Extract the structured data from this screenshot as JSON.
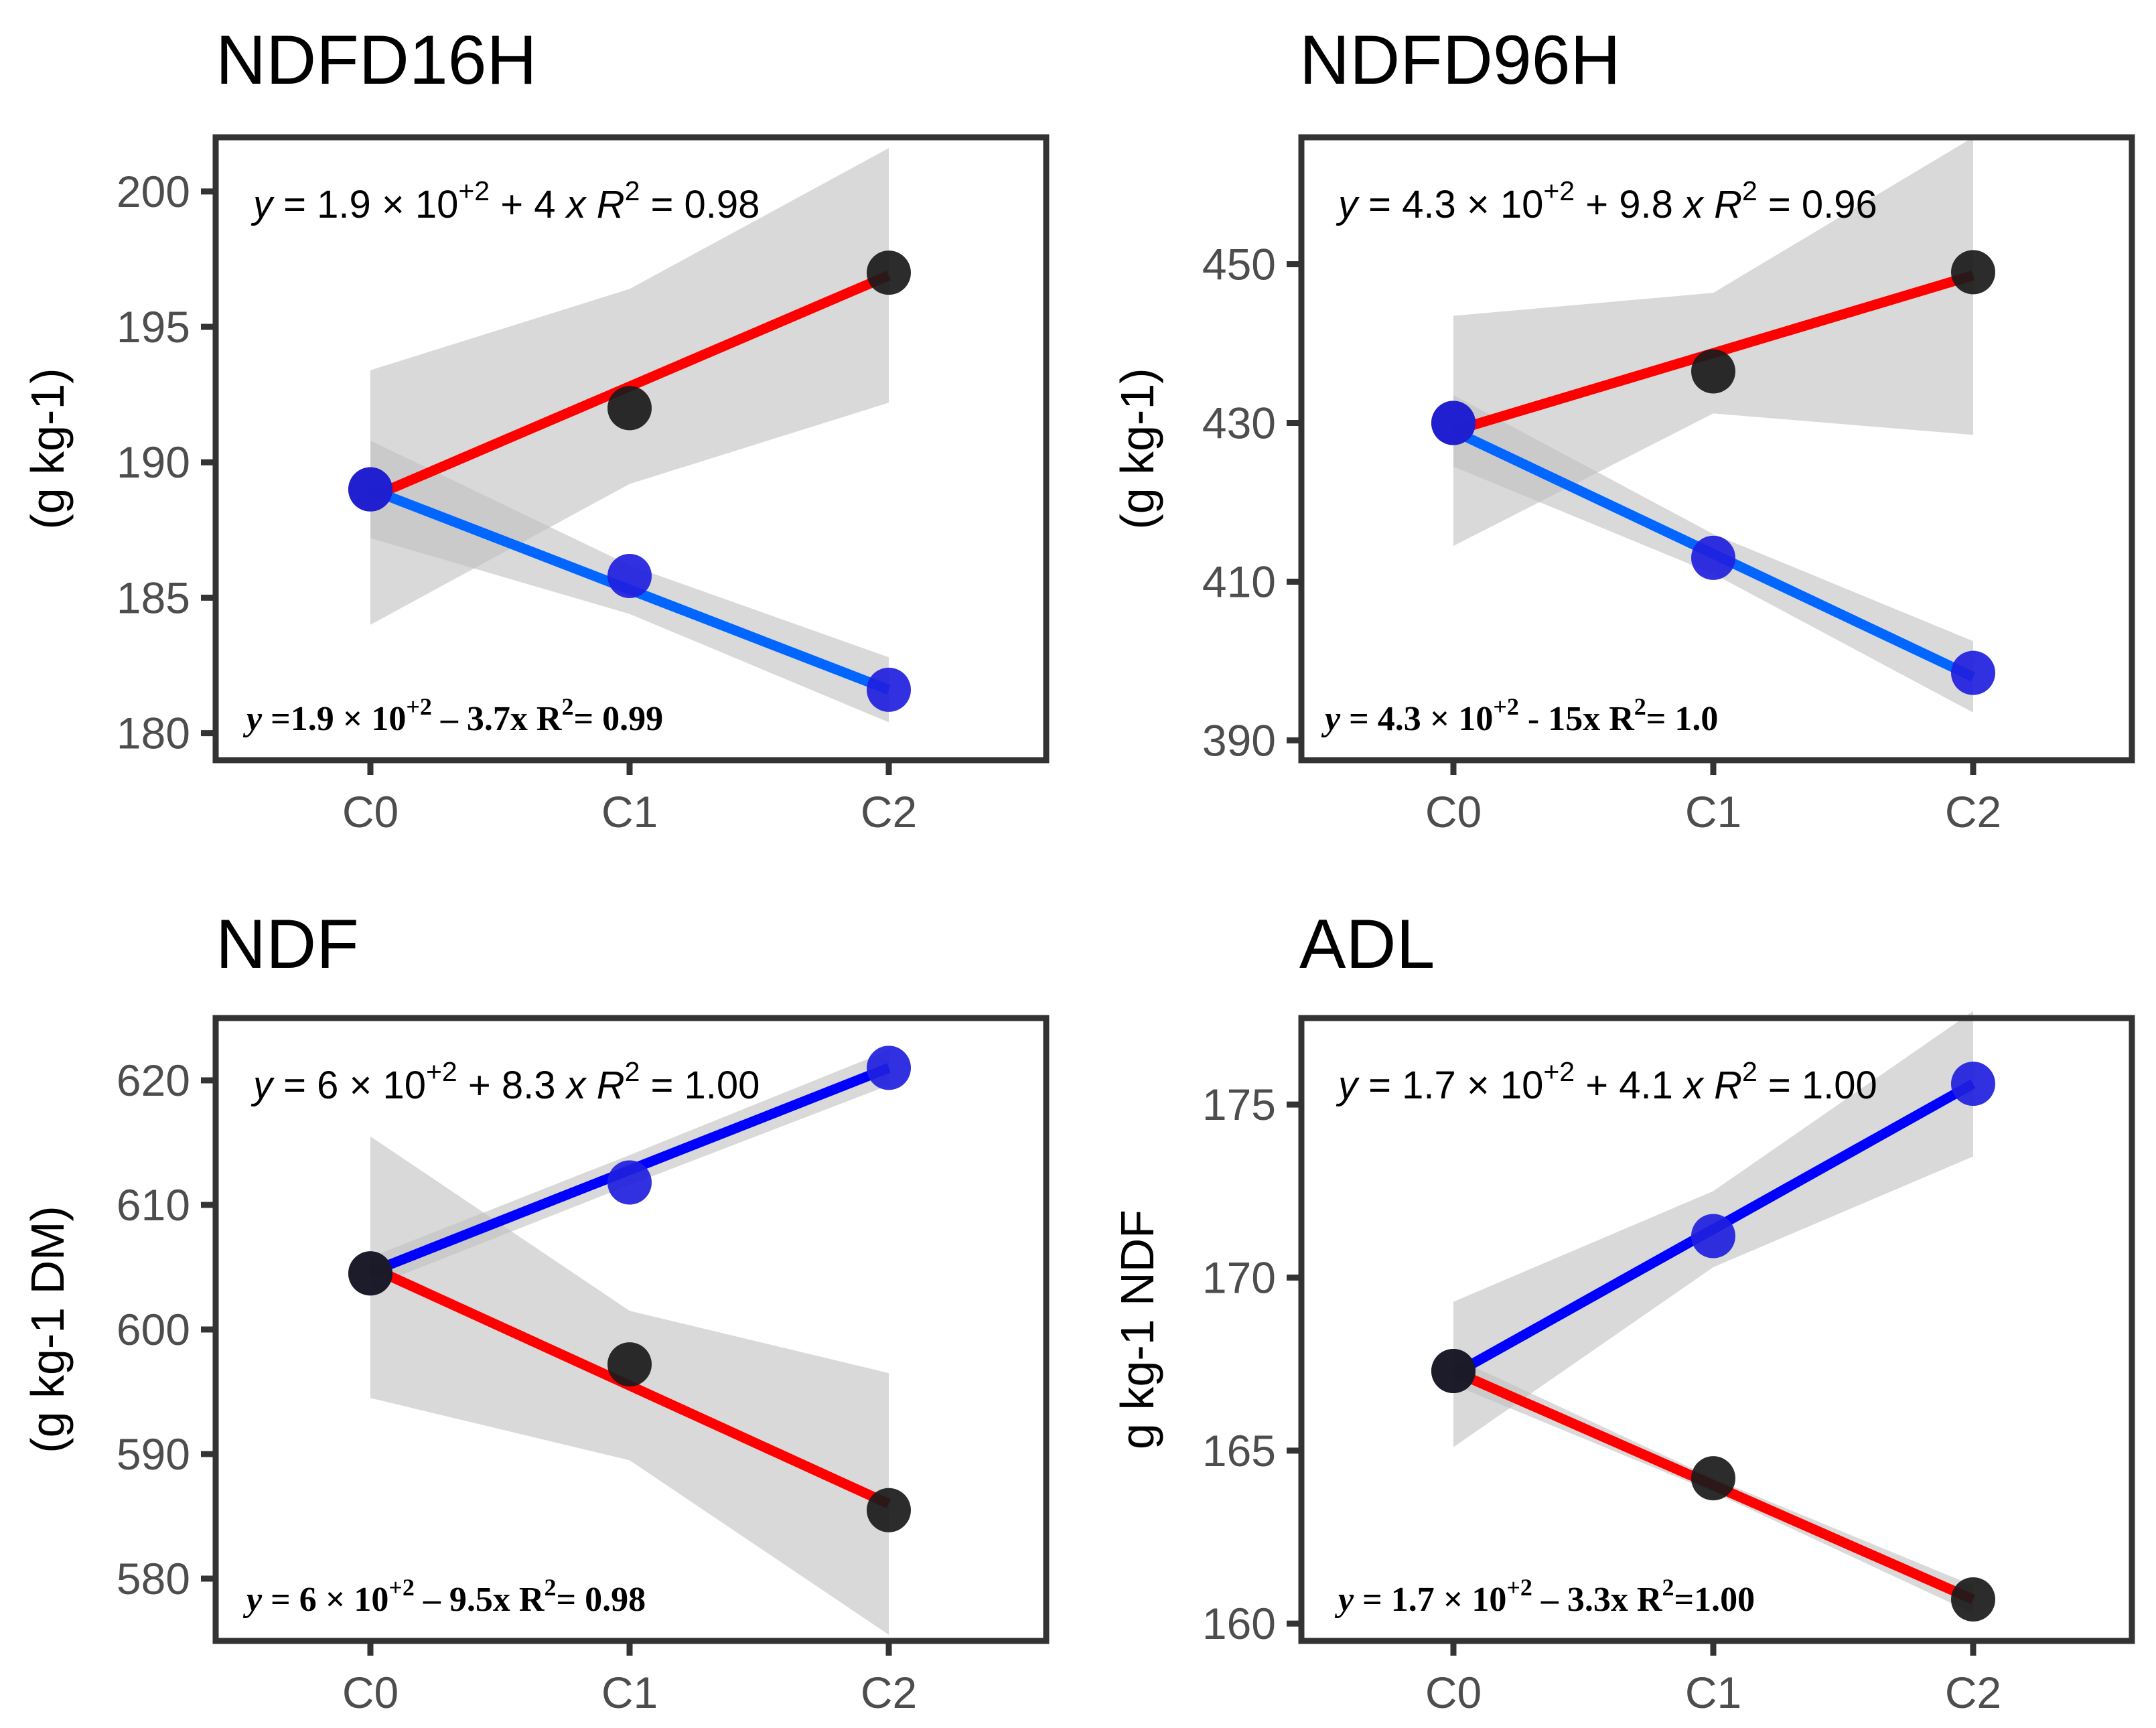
{
  "figure": {
    "colors": {
      "red": "#ff0000",
      "blue": "#0000ff",
      "lightblue": "#0066ff",
      "black_point": "#1a1a1a",
      "blue_point": "#1f1fe0",
      "ribbon": "#bfbfbf",
      "frame": "#333333"
    }
  },
  "chart_data": [
    {
      "type": "scatter",
      "title": "NDFD16H",
      "xlabel": "",
      "ylabel": "(g kg-1)",
      "categories": [
        "C0",
        "C1",
        "C2"
      ],
      "ylim": [
        179,
        202
      ],
      "yticks": [
        180,
        185,
        190,
        195,
        200
      ],
      "series": [
        {
          "name": "increasing",
          "color": "red",
          "point_color": "black_point",
          "values": [
            189,
            192,
            197
          ],
          "fit": [
            188.7,
            192.8,
            196.9
          ],
          "ci_low": [
            184.0,
            189.2,
            192.2
          ],
          "ci_high": [
            193.4,
            196.4,
            201.6
          ],
          "equation": {
            "parts": [
              {
                "i": "y"
              },
              {
                "t": " = 1.9 × 10"
              },
              {
                "sup": "+2"
              },
              {
                "t": " + 4 "
              },
              {
                "i": "x"
              },
              {
                "t": "  "
              },
              {
                "i": "R"
              },
              {
                "sup": "2"
              },
              {
                "t": " = 0.98"
              }
            ]
          }
        },
        {
          "name": "decreasing",
          "color": "lightblue",
          "point_color": "blue_point",
          "values": [
            189,
            185.8,
            181.6
          ],
          "fit": [
            189,
            185.3,
            181.6
          ],
          "ci_low": [
            187.2,
            184.4,
            180.4
          ],
          "ci_high": [
            190.8,
            186.2,
            182.8
          ],
          "equation": {
            "parts": [
              {
                "i": "y"
              },
              {
                "t": " =1.9 × 10"
              },
              {
                "sup": "+2"
              },
              {
                "t": " – 3.7x  R"
              },
              {
                "sup": "2"
              },
              {
                "t": "= 0.99"
              }
            ]
          }
        }
      ]
    },
    {
      "type": "scatter",
      "title": "NDFD96H",
      "xlabel": "",
      "ylabel": "(g kg-1)",
      "categories": [
        "C0",
        "C1",
        "C2"
      ],
      "ylim": [
        387.5,
        466
      ],
      "yticks": [
        390,
        410,
        430,
        450
      ],
      "series": [
        {
          "name": "increasing",
          "color": "red",
          "point_color": "black_point",
          "values": [
            430,
            436.5,
            449
          ],
          "fit": [
            429,
            438.8,
            448.6
          ],
          "ci_low": [
            414.5,
            431.2,
            428.5
          ],
          "ci_high": [
            443.5,
            446.4,
            466
          ]
        },
        {
          "name": "decreasing",
          "color": "lightblue",
          "point_color": "blue_point",
          "values": [
            430,
            413,
            398.5
          ],
          "fit": [
            429,
            413.5,
            398
          ],
          "ci_low": [
            424.5,
            411,
            393.5
          ],
          "ci_high": [
            433.5,
            416,
            402.5
          ]
        }
      ],
      "equations": {
        "top": {
          "parts": [
            {
              "i": "y"
            },
            {
              "t": " = 4.3 × 10"
            },
            {
              "sup": "+2"
            },
            {
              "t": " + 9.8 "
            },
            {
              "i": "x"
            },
            {
              "t": "  "
            },
            {
              "i": "R"
            },
            {
              "sup": "2"
            },
            {
              "t": " = 0.96"
            }
          ]
        },
        "bottom": {
          "parts": [
            {
              "i": "y"
            },
            {
              "t": " = 4.3 × 10"
            },
            {
              "sup": "+2"
            },
            {
              "t": " - 15x  R"
            },
            {
              "sup": "2"
            },
            {
              "t": "= 1.0"
            }
          ]
        }
      }
    },
    {
      "type": "scatter",
      "title": "NDF",
      "xlabel": "",
      "ylabel": "(g kg-1 DM)",
      "categories": [
        "C0",
        "C1",
        "C2"
      ],
      "ylim": [
        575,
        625
      ],
      "yticks": [
        580,
        590,
        600,
        610,
        620
      ],
      "series": [
        {
          "name": "increasing",
          "color": "blue",
          "point_color": "blue_point",
          "values": [
            604.5,
            611.8,
            621
          ],
          "fit": [
            604.6,
            612.8,
            621
          ],
          "ci_low": [
            603.4,
            611.6,
            619.6
          ],
          "ci_high": [
            605.8,
            614,
            622.4
          ]
        },
        {
          "name": "decreasing",
          "color": "red",
          "point_color": "black_point",
          "values": [
            604.5,
            597.2,
            585.5
          ],
          "fit": [
            605,
            595.5,
            586
          ],
          "ci_low": [
            594.5,
            589.5,
            575.5
          ],
          "ci_high": [
            615.5,
            601.5,
            596.5
          ]
        }
      ],
      "equations": {
        "top": {
          "parts": [
            {
              "i": "y"
            },
            {
              "t": " = 6 × 10"
            },
            {
              "sup": "+2"
            },
            {
              "t": " + 8.3 "
            },
            {
              "i": "x"
            },
            {
              "t": "  "
            },
            {
              "i": "R"
            },
            {
              "sup": "2"
            },
            {
              "t": " = 1.00"
            }
          ]
        },
        "bottom": {
          "parts": [
            {
              "i": "y"
            },
            {
              "t": " = 6 × 10"
            },
            {
              "sup": "+2"
            },
            {
              "t": " – 9.5x  R"
            },
            {
              "sup": "2"
            },
            {
              "t": "= 0.98"
            }
          ]
        }
      }
    },
    {
      "type": "scatter",
      "title": "ADL",
      "xlabel": "",
      "ylabel": "g kg-1 NDF",
      "categories": [
        "C0",
        "C1",
        "C2"
      ],
      "ylim": [
        159.5,
        177.5
      ],
      "yticks": [
        160,
        165,
        170,
        175
      ],
      "series": [
        {
          "name": "increasing",
          "color": "blue",
          "point_color": "blue_point",
          "values": [
            167.3,
            171.2,
            175.6
          ],
          "fit": [
            167.2,
            171.4,
            175.6
          ],
          "ci_low": [
            165.1,
            170.3,
            173.5
          ],
          "ci_high": [
            169.3,
            172.5,
            177.7
          ]
        },
        {
          "name": "decreasing",
          "color": "red",
          "point_color": "black_point",
          "values": [
            167.3,
            164.2,
            160.7
          ],
          "fit": [
            167.3,
            164,
            160.7
          ],
          "ci_low": [
            166.9,
            163.8,
            160.3
          ],
          "ci_high": [
            167.7,
            164.2,
            161.1
          ]
        }
      ],
      "equations": {
        "top": {
          "parts": [
            {
              "i": "y"
            },
            {
              "t": " = 1.7 × 10"
            },
            {
              "sup": "+2"
            },
            {
              "t": " + 4.1 "
            },
            {
              "i": "x"
            },
            {
              "t": "  "
            },
            {
              "i": "R"
            },
            {
              "sup": "2"
            },
            {
              "t": " = 1.00"
            }
          ]
        },
        "bottom": {
          "parts": [
            {
              "i": "y"
            },
            {
              "t": " = 1.7 × 10"
            },
            {
              "sup": "+2"
            },
            {
              "t": " – 3.3x  R"
            },
            {
              "sup": "2"
            },
            {
              "t": "=1.00"
            }
          ]
        }
      }
    }
  ]
}
